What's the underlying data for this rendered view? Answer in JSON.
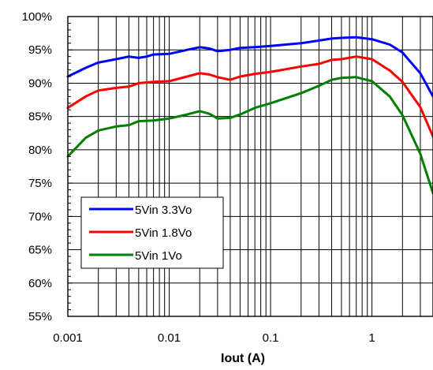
{
  "chart_data": {
    "type": "line",
    "xlabel": "Iout (A)",
    "ylabel": "",
    "x_scale": "log",
    "xlim": [
      0.001,
      4
    ],
    "ylim": [
      55,
      100
    ],
    "x_ticks": [
      0.001,
      0.01,
      0.1,
      1
    ],
    "x_tick_labels": [
      "0.001",
      "0.01",
      "0.1",
      "1"
    ],
    "y_ticks": [
      55,
      60,
      65,
      70,
      75,
      80,
      85,
      90,
      95,
      100
    ],
    "y_tick_labels": [
      "55%",
      "60%",
      "65%",
      "70%",
      "75%",
      "80%",
      "85%",
      "90%",
      "95%",
      "100%"
    ],
    "grid": true,
    "legend_position": "bottom-left",
    "series": [
      {
        "name": "5Vin 3.3Vo",
        "color": "#0000ff",
        "points": [
          [
            0.001,
            91.0
          ],
          [
            0.0015,
            92.3
          ],
          [
            0.002,
            93.1
          ],
          [
            0.003,
            93.6
          ],
          [
            0.004,
            94.0
          ],
          [
            0.005,
            93.8
          ],
          [
            0.006,
            94.0
          ],
          [
            0.007,
            94.3
          ],
          [
            0.01,
            94.4
          ],
          [
            0.015,
            95.0
          ],
          [
            0.02,
            95.4
          ],
          [
            0.025,
            95.2
          ],
          [
            0.03,
            94.8
          ],
          [
            0.04,
            95.0
          ],
          [
            0.05,
            95.3
          ],
          [
            0.07,
            95.4
          ],
          [
            0.1,
            95.6
          ],
          [
            0.2,
            96.0
          ],
          [
            0.3,
            96.4
          ],
          [
            0.4,
            96.7
          ],
          [
            0.5,
            96.8
          ],
          [
            0.7,
            96.9
          ],
          [
            1.0,
            96.6
          ],
          [
            1.5,
            95.8
          ],
          [
            2.0,
            94.6
          ],
          [
            3.0,
            91.5
          ],
          [
            4.0,
            88.0
          ]
        ]
      },
      {
        "name": "5Vin 1.8Vo",
        "color": "#ff0000",
        "points": [
          [
            0.001,
            86.3
          ],
          [
            0.0015,
            88.0
          ],
          [
            0.002,
            88.9
          ],
          [
            0.003,
            89.3
          ],
          [
            0.004,
            89.5
          ],
          [
            0.005,
            90.0
          ],
          [
            0.007,
            90.2
          ],
          [
            0.01,
            90.3
          ],
          [
            0.015,
            91.0
          ],
          [
            0.02,
            91.5
          ],
          [
            0.025,
            91.3
          ],
          [
            0.03,
            90.9
          ],
          [
            0.04,
            90.5
          ],
          [
            0.05,
            91.0
          ],
          [
            0.07,
            91.4
          ],
          [
            0.1,
            91.7
          ],
          [
            0.2,
            92.5
          ],
          [
            0.3,
            92.9
          ],
          [
            0.4,
            93.5
          ],
          [
            0.5,
            93.6
          ],
          [
            0.7,
            94.0
          ],
          [
            1.0,
            93.6
          ],
          [
            1.5,
            91.9
          ],
          [
            2.0,
            90.2
          ],
          [
            3.0,
            86.4
          ],
          [
            4.0,
            82.0
          ]
        ]
      },
      {
        "name": "5Vin 1Vo",
        "color": "#008000",
        "points": [
          [
            0.001,
            79.0
          ],
          [
            0.0015,
            81.8
          ],
          [
            0.002,
            82.9
          ],
          [
            0.003,
            83.5
          ],
          [
            0.004,
            83.7
          ],
          [
            0.005,
            84.3
          ],
          [
            0.007,
            84.4
          ],
          [
            0.01,
            84.7
          ],
          [
            0.015,
            85.3
          ],
          [
            0.02,
            85.8
          ],
          [
            0.025,
            85.4
          ],
          [
            0.03,
            84.7
          ],
          [
            0.04,
            84.8
          ],
          [
            0.05,
            85.3
          ],
          [
            0.07,
            86.3
          ],
          [
            0.1,
            87.0
          ],
          [
            0.2,
            88.5
          ],
          [
            0.3,
            89.6
          ],
          [
            0.4,
            90.5
          ],
          [
            0.5,
            90.8
          ],
          [
            0.7,
            90.9
          ],
          [
            1.0,
            90.3
          ],
          [
            1.5,
            88.0
          ],
          [
            2.0,
            85.2
          ],
          [
            3.0,
            79.4
          ],
          [
            4.0,
            73.5
          ]
        ]
      }
    ]
  }
}
